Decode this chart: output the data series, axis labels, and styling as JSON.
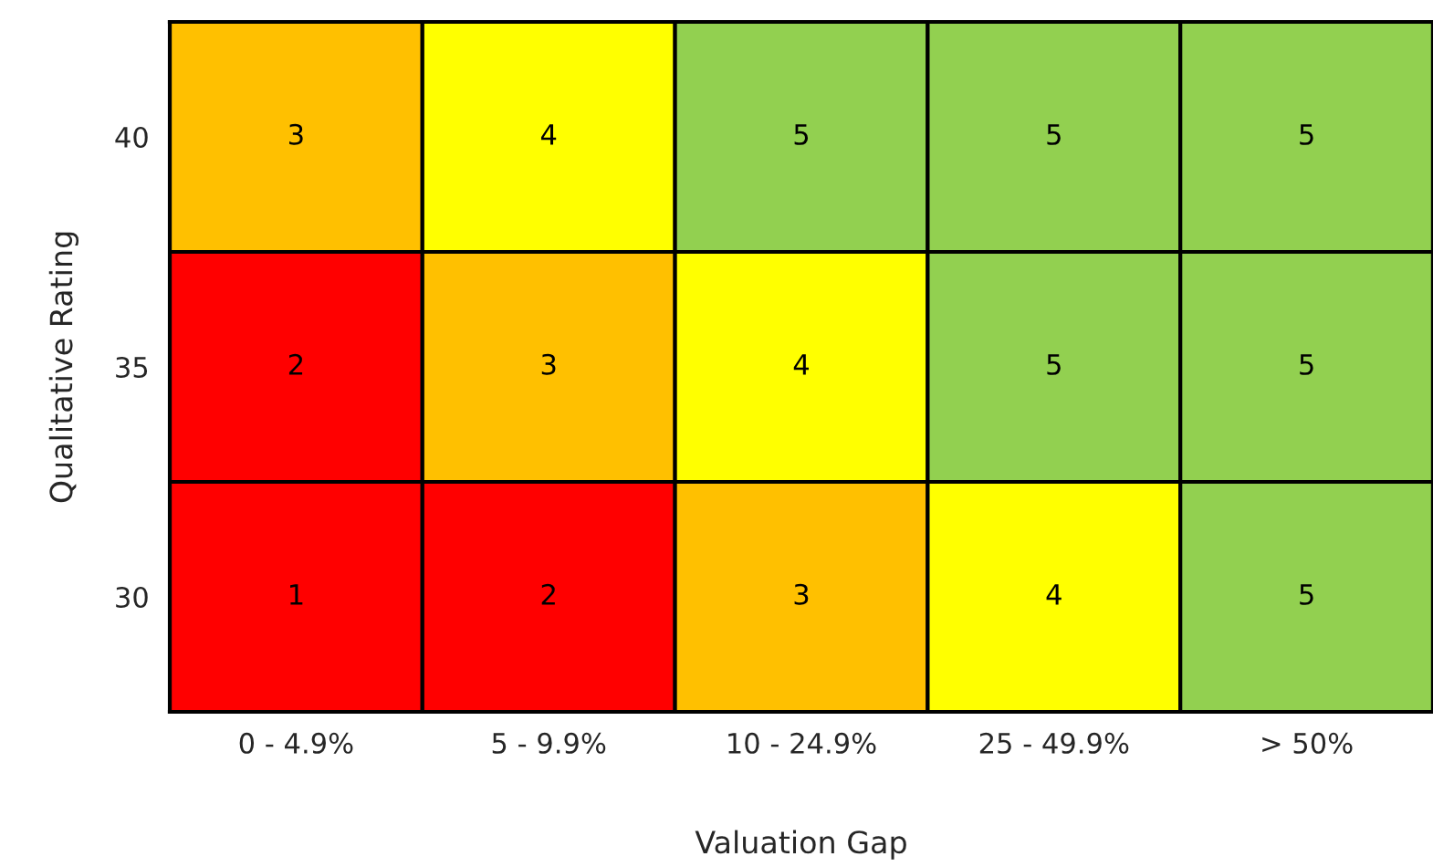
{
  "chart_data": {
    "type": "heatmap",
    "xlabel": "Valuation Gap",
    "ylabel": "Qualitative Rating",
    "categories": [
      "0 - 4.9%",
      "5 - 9.9%",
      "10 - 24.9%",
      "25 - 49.9%",
      "> 50%"
    ],
    "y_categories": [
      "40",
      "35",
      "30"
    ],
    "cells": [
      [
        3,
        4,
        5,
        5,
        5
      ],
      [
        2,
        3,
        4,
        5,
        5
      ],
      [
        1,
        2,
        3,
        4,
        5
      ]
    ],
    "colors": [
      "#ff0000",
      "#ff0000",
      "#ffc000",
      "#ffff00",
      "#92d050"
    ],
    "data_labels": true
  }
}
